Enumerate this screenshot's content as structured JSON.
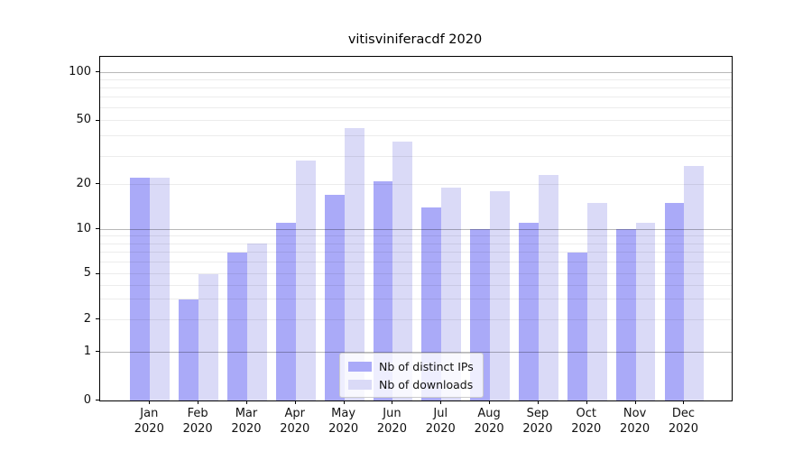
{
  "chart_data": {
    "type": "bar",
    "title": "vitisviniferacdf 2020",
    "categories": [
      "Jan 2020",
      "Feb 2020",
      "Mar 2020",
      "Apr 2020",
      "May 2020",
      "Jun 2020",
      "Jul 2020",
      "Aug 2020",
      "Sep 2020",
      "Oct 2020",
      "Nov 2020",
      "Dec 2020"
    ],
    "series": [
      {
        "name": "Nb of distinct IPs",
        "color": "#aaaaf8",
        "values": [
          22,
          3,
          7,
          11,
          17,
          21,
          14,
          10,
          11,
          7,
          10,
          15
        ]
      },
      {
        "name": "Nb of downloads",
        "color": "#dadaf7",
        "values": [
          22,
          5,
          8,
          28,
          45,
          37,
          19,
          18,
          23,
          15,
          11,
          26
        ]
      }
    ],
    "xlabel": "",
    "ylabel": "",
    "y_axis": {
      "ticks": [
        0,
        1,
        2,
        5,
        10,
        20,
        50,
        100
      ],
      "scale": "log-like with 0 baseline",
      "ylim": [
        0,
        125
      ]
    },
    "grid": {
      "on": true,
      "major_values": [
        1,
        10,
        100
      ],
      "minor_values": [
        2,
        3,
        4,
        5,
        6,
        7,
        8,
        9,
        20,
        30,
        40,
        50,
        60,
        70,
        80,
        90
      ]
    },
    "legend": {
      "position": "inside lower-center",
      "entries": [
        "Nb of distinct IPs",
        "Nb of downloads"
      ]
    }
  },
  "colors": {
    "bar_distinct_ips": "#aaaaf8",
    "bar_downloads": "#dadaf7",
    "grid_major": "#b8b8b8",
    "grid_minor": "#ececec",
    "axis_spine": "#000000",
    "text": "#111111",
    "legend_border": "#cccccc"
  }
}
